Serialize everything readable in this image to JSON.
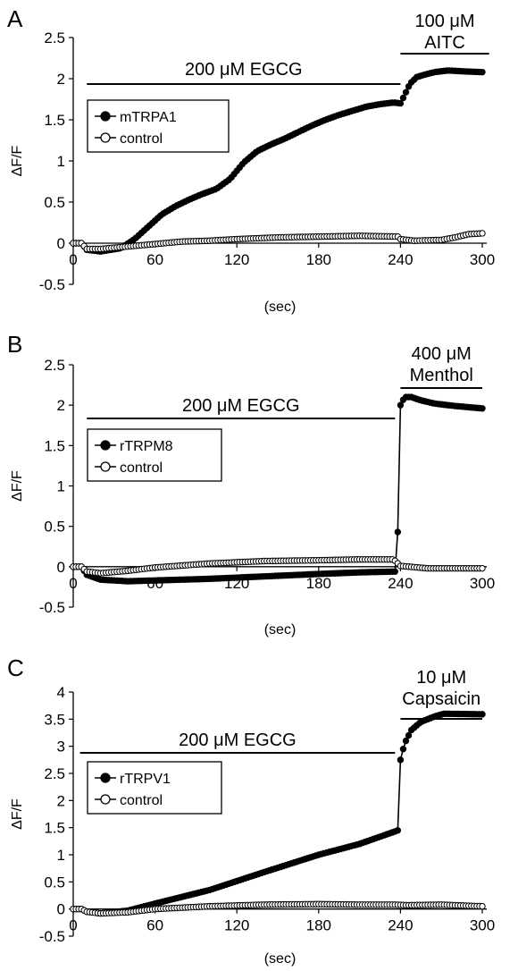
{
  "chart_data": [
    {
      "type": "scatter",
      "panel_label": "A",
      "xlabel": "(sec)",
      "ylabel": "ΔF/F",
      "xlim": [
        0,
        300
      ],
      "ylim": [
        -0.5,
        2.5
      ],
      "x_ticks": [
        "0",
        "60",
        "120",
        "180",
        "240",
        "300"
      ],
      "y_ticks": [
        "-0.5",
        "0",
        "0.5",
        "1",
        "1.5",
        "2",
        "2.5"
      ],
      "legend_position": "upper-left",
      "annotations": [
        {
          "id": "egcg",
          "lines": [
            "200 μM EGCG"
          ],
          "x_start": 10,
          "x_end": 240
        },
        {
          "id": "agonist",
          "lines": [
            "100 μM",
            "AITC"
          ],
          "x_start": 240,
          "x_end": 305
        }
      ],
      "series": [
        {
          "name": "mTRPA1",
          "marker": "filled",
          "keypoints": [
            [
              0,
              0
            ],
            [
              6,
              0
            ],
            [
              10,
              -0.08
            ],
            [
              20,
              -0.1
            ],
            [
              35,
              -0.06
            ],
            [
              45,
              0.05
            ],
            [
              55,
              0.2
            ],
            [
              65,
              0.35
            ],
            [
              75,
              0.45
            ],
            [
              85,
              0.53
            ],
            [
              95,
              0.6
            ],
            [
              105,
              0.66
            ],
            [
              115,
              0.78
            ],
            [
              125,
              0.98
            ],
            [
              135,
              1.12
            ],
            [
              145,
              1.2
            ],
            [
              155,
              1.27
            ],
            [
              165,
              1.35
            ],
            [
              175,
              1.43
            ],
            [
              185,
              1.5
            ],
            [
              195,
              1.56
            ],
            [
              205,
              1.61
            ],
            [
              215,
              1.66
            ],
            [
              225,
              1.69
            ],
            [
              235,
              1.71
            ],
            [
              240,
              1.7
            ],
            [
              243,
              1.8
            ],
            [
              247,
              1.94
            ],
            [
              252,
              2.02
            ],
            [
              258,
              2.05
            ],
            [
              265,
              2.08
            ],
            [
              275,
              2.1
            ],
            [
              285,
              2.09
            ],
            [
              300,
              2.08
            ]
          ]
        },
        {
          "name": "control",
          "marker": "open",
          "keypoints": [
            [
              0,
              0
            ],
            [
              6,
              0
            ],
            [
              10,
              -0.07
            ],
            [
              20,
              -0.07
            ],
            [
              40,
              -0.04
            ],
            [
              60,
              -0.01
            ],
            [
              80,
              0.02
            ],
            [
              100,
              0.03
            ],
            [
              120,
              0.05
            ],
            [
              150,
              0.07
            ],
            [
              180,
              0.08
            ],
            [
              210,
              0.09
            ],
            [
              238,
              0.08
            ],
            [
              240,
              0.05
            ],
            [
              250,
              0.03
            ],
            [
              270,
              0.04
            ],
            [
              280,
              0.07
            ],
            [
              290,
              0.11
            ],
            [
              300,
              0.12
            ]
          ]
        }
      ]
    },
    {
      "type": "scatter",
      "panel_label": "B",
      "xlabel": "(sec)",
      "ylabel": "ΔF/F",
      "xlim": [
        0,
        300
      ],
      "ylim": [
        -0.5,
        2.5
      ],
      "x_ticks": [
        "0",
        "60",
        "120",
        "180",
        "240",
        "300"
      ],
      "y_ticks": [
        "-0.5",
        "0",
        "0.5",
        "1",
        "1.5",
        "2",
        "2.5"
      ],
      "legend_position": "upper-left",
      "annotations": [
        {
          "id": "egcg",
          "lines": [
            "200 μM EGCG"
          ],
          "x_start": 10,
          "x_end": 236
        },
        {
          "id": "agonist",
          "lines": [
            "400 μM",
            "Menthol"
          ],
          "x_start": 240,
          "x_end": 300
        }
      ],
      "series": [
        {
          "name": "rTRPM8",
          "marker": "filled",
          "keypoints": [
            [
              0,
              0
            ],
            [
              6,
              0
            ],
            [
              10,
              -0.1
            ],
            [
              20,
              -0.16
            ],
            [
              40,
              -0.18
            ],
            [
              60,
              -0.17
            ],
            [
              100,
              -0.15
            ],
            [
              140,
              -0.12
            ],
            [
              180,
              -0.09
            ],
            [
              210,
              -0.07
            ],
            [
              236,
              -0.06
            ],
            [
              238,
              0.43
            ],
            [
              240,
              2.0
            ],
            [
              243,
              2.1
            ],
            [
              248,
              2.1
            ],
            [
              255,
              2.06
            ],
            [
              265,
              2.02
            ],
            [
              280,
              1.99
            ],
            [
              300,
              1.96
            ]
          ]
        },
        {
          "name": "control",
          "marker": "open",
          "keypoints": [
            [
              0,
              0
            ],
            [
              6,
              0
            ],
            [
              10,
              -0.06
            ],
            [
              20,
              -0.08
            ],
            [
              40,
              -0.05
            ],
            [
              60,
              -0.01
            ],
            [
              100,
              0.04
            ],
            [
              140,
              0.07
            ],
            [
              180,
              0.08
            ],
            [
              210,
              0.09
            ],
            [
              235,
              0.09
            ],
            [
              240,
              0.01
            ],
            [
              260,
              -0.02
            ],
            [
              280,
              -0.02
            ],
            [
              300,
              -0.02
            ]
          ]
        }
      ]
    },
    {
      "type": "scatter",
      "panel_label": "C",
      "xlabel": "(sec)",
      "ylabel": "ΔF/F",
      "xlim": [
        0,
        300
      ],
      "ylim": [
        -0.5,
        4
      ],
      "x_ticks": [
        "0",
        "60",
        "120",
        "180",
        "240",
        "300"
      ],
      "y_ticks": [
        "-0.5",
        "0",
        "0.5",
        "1",
        "1.5",
        "2",
        "2.5",
        "3",
        "3.5",
        "4"
      ],
      "legend_position": "upper-left",
      "annotations": [
        {
          "id": "egcg",
          "lines": [
            "200 μM EGCG"
          ],
          "x_start": 5,
          "x_end": 236
        },
        {
          "id": "agonist",
          "lines": [
            "10 μM",
            "Capsaicin"
          ],
          "x_start": 240,
          "x_end": 300
        }
      ],
      "series": [
        {
          "name": "rTRPV1",
          "marker": "filled",
          "keypoints": [
            [
              0,
              0
            ],
            [
              6,
              0
            ],
            [
              10,
              -0.05
            ],
            [
              20,
              -0.08
            ],
            [
              40,
              -0.03
            ],
            [
              60,
              0.1
            ],
            [
              100,
              0.35
            ],
            [
              140,
              0.68
            ],
            [
              180,
              1.0
            ],
            [
              210,
              1.2
            ],
            [
              236,
              1.43
            ],
            [
              238,
              1.45
            ],
            [
              240,
              2.75
            ],
            [
              243,
              3.05
            ],
            [
              248,
              3.3
            ],
            [
              255,
              3.45
            ],
            [
              265,
              3.55
            ],
            [
              272,
              3.6
            ],
            [
              300,
              3.59
            ]
          ]
        },
        {
          "name": "control",
          "marker": "open",
          "keypoints": [
            [
              0,
              0
            ],
            [
              6,
              0
            ],
            [
              10,
              -0.05
            ],
            [
              20,
              -0.08
            ],
            [
              40,
              -0.06
            ],
            [
              60,
              0.0
            ],
            [
              100,
              0.05
            ],
            [
              140,
              0.08
            ],
            [
              180,
              0.09
            ],
            [
              210,
              0.08
            ],
            [
              236,
              0.08
            ],
            [
              245,
              0.07
            ],
            [
              270,
              0.08
            ],
            [
              290,
              0.06
            ],
            [
              300,
              0.05
            ]
          ]
        }
      ]
    }
  ]
}
